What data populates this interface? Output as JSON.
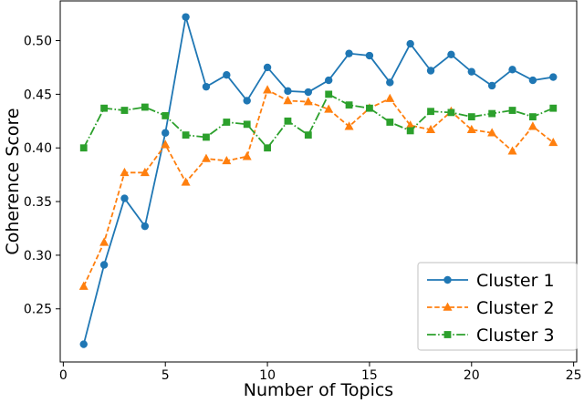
{
  "figure": {
    "type_note": "matplotlib-style line chart",
    "background_color": "#ffffff",
    "spine_color": "#000000",
    "legend_border_color": "#cccccc"
  },
  "chart_data": {
    "type": "line",
    "title": "",
    "xlabel": "Number of Topics",
    "ylabel": "Coherence Score",
    "x": [
      1,
      2,
      3,
      4,
      5,
      6,
      7,
      8,
      9,
      10,
      11,
      12,
      13,
      14,
      15,
      16,
      17,
      18,
      19,
      20,
      21,
      22,
      23,
      24
    ],
    "series": [
      {
        "name": "Cluster 1",
        "color": "#1f77b4",
        "marker": "circle",
        "linestyle": "solid",
        "values": [
          0.217,
          0.291,
          0.353,
          0.327,
          0.414,
          0.522,
          0.457,
          0.468,
          0.444,
          0.475,
          0.453,
          0.452,
          0.463,
          0.488,
          0.486,
          0.461,
          0.497,
          0.472,
          0.487,
          0.471,
          0.458,
          0.473,
          0.463,
          0.466
        ]
      },
      {
        "name": "Cluster 2",
        "color": "#ff7f0e",
        "marker": "triangle",
        "linestyle": "dashed",
        "values": [
          0.271,
          0.312,
          0.377,
          0.377,
          0.403,
          0.368,
          0.39,
          0.388,
          0.392,
          0.454,
          0.444,
          0.443,
          0.436,
          0.42,
          0.437,
          0.446,
          0.421,
          0.417,
          0.434,
          0.417,
          0.414,
          0.397,
          0.42,
          0.405
        ]
      },
      {
        "name": "Cluster 3",
        "color": "#2ca02c",
        "marker": "square",
        "linestyle": "dashdot",
        "values": [
          0.4,
          0.437,
          0.435,
          0.438,
          0.43,
          0.412,
          0.41,
          0.424,
          0.422,
          0.4,
          0.425,
          0.412,
          0.45,
          0.44,
          0.437,
          0.424,
          0.416,
          0.434,
          0.433,
          0.429,
          0.432,
          0.435,
          0.429,
          0.437
        ]
      }
    ],
    "xlim": [
      -0.15,
      25.15
    ],
    "ylim": [
      0.2005,
      0.537
    ],
    "xticks": [
      0,
      5,
      10,
      15,
      20,
      25
    ],
    "yticks": [
      0.25,
      0.3,
      0.35,
      0.4,
      0.45,
      0.5
    ],
    "grid": false,
    "legend_position": "lower right",
    "legend": [
      "Cluster 1",
      "Cluster 2",
      "Cluster 3"
    ]
  }
}
